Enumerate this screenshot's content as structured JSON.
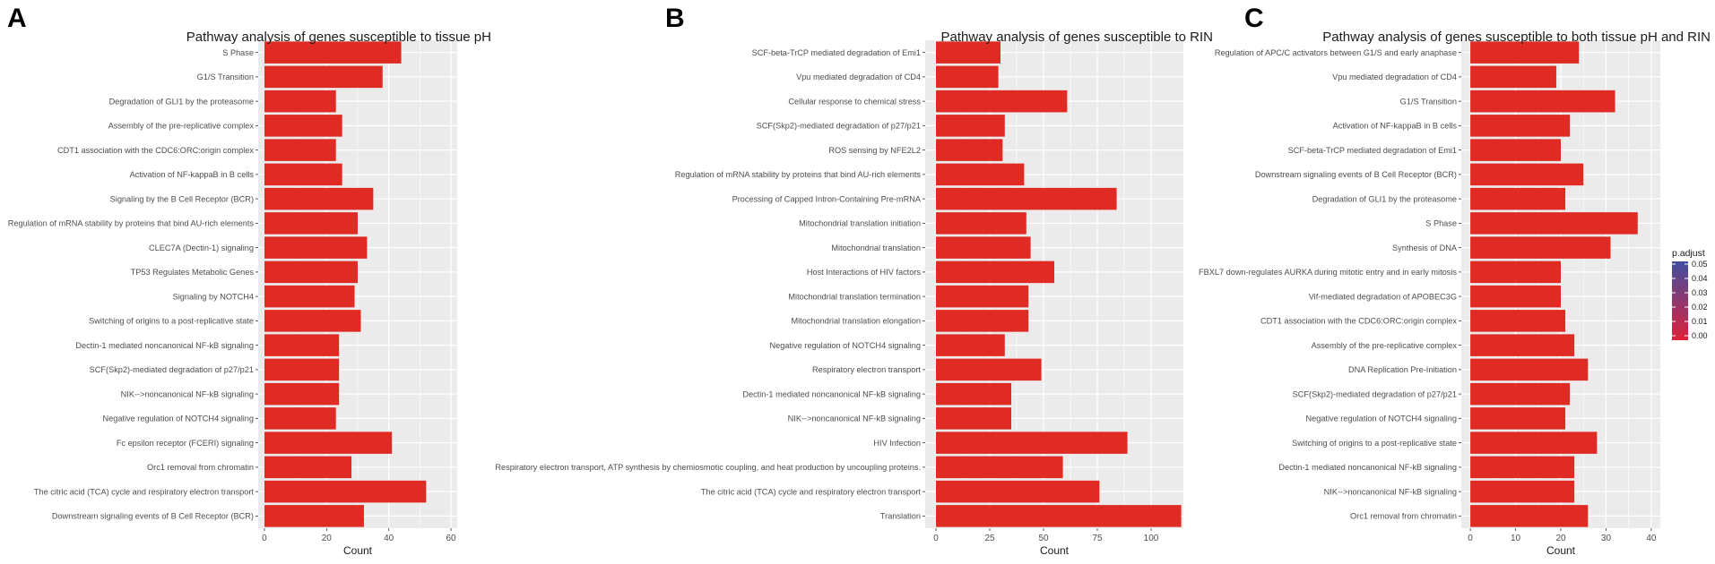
{
  "panel_letters": [
    "A",
    "B",
    "C"
  ],
  "bar_color": "#e02b24",
  "panel_background": "#ebebeb",
  "grid_color": "#ffffff",
  "chart_data": [
    {
      "type": "bar",
      "orientation": "horizontal",
      "title": "Pathway analysis of genes susceptible to tissue pH",
      "xlabel": "Count",
      "ylabel": "",
      "xlim": [
        -2,
        62
      ],
      "xticks": [
        0,
        20,
        40,
        60
      ],
      "categories": [
        "S Phase",
        "G1/S Transition",
        "Degradation of GLI1 by the proteasome",
        "Assembly of the pre-replicative complex",
        "CDT1 association with the CDC6:ORC:origin complex",
        "Activation of NF-kappaB in B cells",
        "Signaling by the B Cell Receptor (BCR)",
        "Regulation of mRNA stability by proteins that bind AU-rich elements",
        "CLEC7A (Dectin-1) signaling",
        "TP53 Regulates Metabolic Genes",
        "Signaling by NOTCH4",
        "Switching of origins to a post-replicative state",
        "Dectin-1 mediated noncanonical NF-kB signaling",
        "SCF(Skp2)-mediated degradation of p27/p21",
        "NIK-->noncanonical NF-kB signaling",
        "Negative regulation of NOTCH4 signaling",
        "Fc epsilon receptor (FCERI) signaling",
        "Orc1 removal from chromatin",
        "The citric acid (TCA) cycle and respiratory electron transport",
        "Downstream signaling events of B Cell Receptor (BCR)"
      ],
      "values": [
        44,
        38,
        23,
        25,
        23,
        25,
        35,
        30,
        33,
        30,
        29,
        31,
        24,
        24,
        24,
        23,
        41,
        28,
        52,
        32
      ]
    },
    {
      "type": "bar",
      "orientation": "horizontal",
      "title": "Pathway analysis of genes susceptible to RIN",
      "xlabel": "Count",
      "ylabel": "",
      "xlim": [
        -5,
        115
      ],
      "xticks": [
        0,
        25,
        50,
        75,
        100
      ],
      "categories": [
        "SCF-beta-TrCP mediated degradation of Emi1",
        "Vpu mediated degradation of CD4",
        "Cellular response to chemical stress",
        "SCF(Skp2)-mediated degradation of p27/p21",
        "ROS sensing by NFE2L2",
        "Regulation of mRNA stability by proteins that bind AU-rich elements",
        "Processing of Capped Intron-Containing Pre-mRNA",
        "Mitochondrial translation initiation",
        "Mitochondrial translation",
        "Host Interactions of HIV factors",
        "Mitochondrial translation termination",
        "Mitochondrial translation elongation",
        "Negative regulation of NOTCH4 signaling",
        "Respiratory electron transport",
        "Dectin-1 mediated noncanonical NF-kB signaling",
        "NIK-->noncanonical NF-kB signaling",
        "HIV Infection",
        "Respiratory electron transport, ATP synthesis by chemiosmotic coupling, and heat production by uncoupling proteins.",
        "The citric acid (TCA) cycle and respiratory electron transport",
        "Translation"
      ],
      "values": [
        30,
        29,
        61,
        32,
        31,
        41,
        84,
        42,
        44,
        55,
        43,
        43,
        32,
        49,
        35,
        35,
        89,
        59,
        76,
        114
      ]
    },
    {
      "type": "bar",
      "orientation": "horizontal",
      "title": "Pathway analysis of genes susceptible to both tissue pH and RIN",
      "xlabel": "Count",
      "ylabel": "",
      "xlim": [
        -2,
        42
      ],
      "xticks": [
        0,
        10,
        20,
        30,
        40
      ],
      "categories": [
        "Regulation of APC/C activators between G1/S and early anaphase",
        "Vpu mediated degradation of CD4",
        "G1/S Transition",
        "Activation of NF-kappaB in B cells",
        "SCF-beta-TrCP mediated degradation of Emi1",
        "Downstream signaling events of B Cell Receptor (BCR)",
        "Degradation of GLI1 by the proteasome",
        "S Phase",
        "Synthesis of DNA",
        "FBXL7 down-regulates AURKA during mitotic entry and in early mitosis",
        "Vif-mediated degradation of APOBEC3G",
        "CDT1 association with the CDC6:ORC:origin complex",
        "Assembly of the pre-replicative complex",
        "DNA Replication Pre-Initiation",
        "SCF(Skp2)-mediated degradation of p27/p21",
        "Negative regulation of NOTCH4 signaling",
        "Switching of origins to a post-replicative state",
        "Dectin-1 mediated noncanonical NF-kB signaling",
        "NIK-->noncanonical NF-kB signaling",
        "Orc1 removal from chromatin"
      ],
      "values": [
        24,
        19,
        32,
        22,
        20,
        25,
        21,
        37,
        31,
        20,
        20,
        21,
        23,
        26,
        22,
        21,
        28,
        23,
        23,
        26
      ],
      "legend": {
        "title": "p.adjust",
        "placement": "right",
        "ticks": [
          "0.05",
          "0.04",
          "0.03",
          "0.02",
          "0.01",
          "0.00"
        ],
        "gradient": [
          "#3f4fa1",
          "#e0203a"
        ]
      }
    }
  ]
}
